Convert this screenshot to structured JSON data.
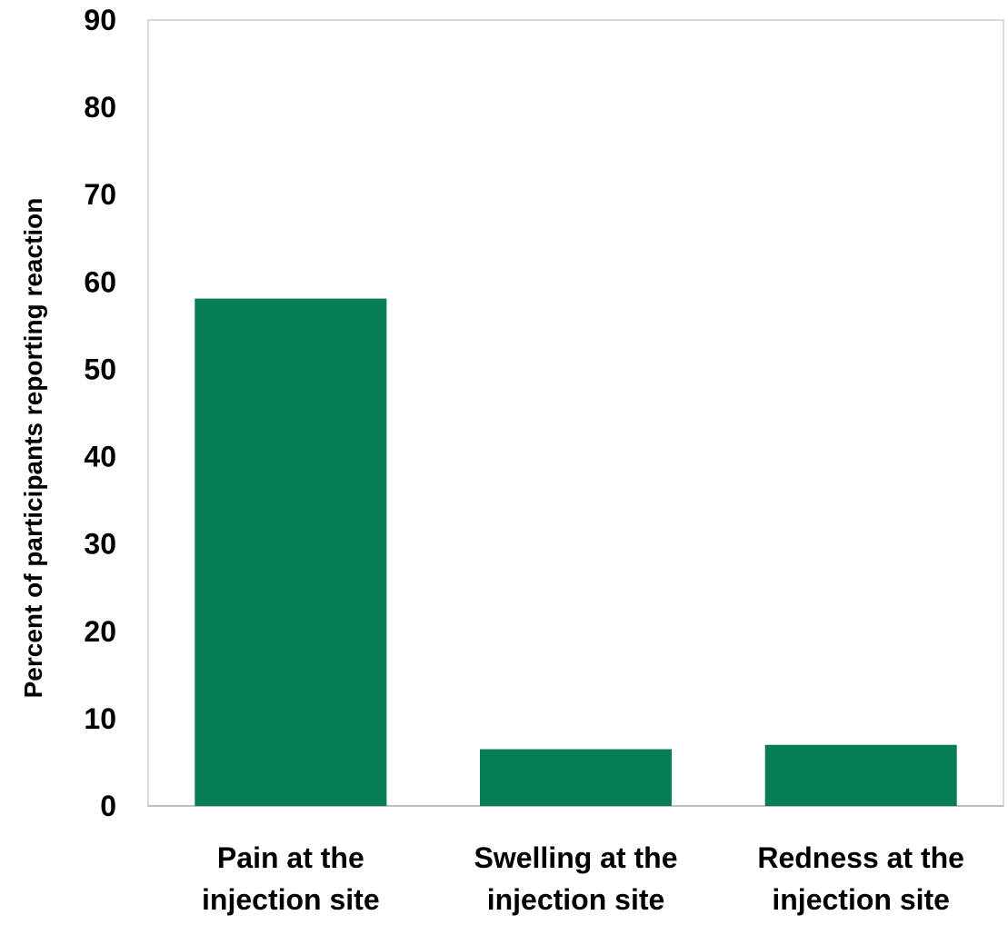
{
  "chart_data": {
    "type": "bar",
    "categories": [
      [
        "Pain at the",
        "injection site"
      ],
      [
        "Swelling at the",
        "injection site"
      ],
      [
        "Redness at the",
        "injection site"
      ]
    ],
    "values": [
      58.1,
      6.5,
      7.0
    ],
    "xlabel": "",
    "ylabel": "Percent of participants reporting reaction",
    "ylim": [
      0,
      90
    ],
    "yticks": [
      0,
      10,
      20,
      30,
      40,
      50,
      60,
      70,
      80,
      90
    ],
    "grid": false,
    "legend": "none",
    "bar_color": "#067D57",
    "frame_color": "#D9D9D9"
  }
}
